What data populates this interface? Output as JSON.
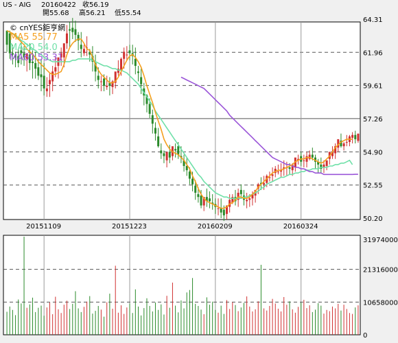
{
  "header": {
    "symbol": "US - AIG",
    "date": "20160422",
    "close_label": "收56.19",
    "open_label": "開55.68",
    "high_label": "高56.21",
    "low_label": "低55.54"
  },
  "legend": {
    "source": "© cnYES鉅亨網",
    "ma5": "MA5 55.77",
    "ma20": "MA20 54.0",
    "ma60": "MA60 53.31"
  },
  "colors": {
    "up": "#d03030",
    "down": "#2a8a2a",
    "ma5": "#f5a020",
    "ma20": "#6fe0a8",
    "ma60": "#9a55d8",
    "grid": "#555555",
    "background": "#f0f0f0"
  },
  "chart_data": [
    {
      "type": "candlestick",
      "title": "US - AIG",
      "y_ticks": [
        "64.31",
        "61.96",
        "59.61",
        "57.26",
        "54.90",
        "52.55",
        "50.20"
      ],
      "y_tick_values": [
        64.31,
        61.96,
        59.61,
        57.26,
        54.9,
        52.55,
        50.2
      ],
      "ylim": [
        50.2,
        64.31
      ],
      "x_ticks": [
        "20151109",
        "20151223",
        "20160209",
        "20160324"
      ],
      "x_tick_index": [
        13,
        43,
        73,
        103
      ],
      "num_bars": 124,
      "ohlc": [
        [
          63.5,
          63.4,
          62.5,
          62.0
        ],
        [
          63.3,
          63.5,
          61.9,
          61.5
        ],
        [
          61.9,
          62.5,
          61.8,
          61.1
        ],
        [
          61.8,
          62.0,
          61.6,
          60.9
        ],
        [
          61.7,
          62.2,
          61.2,
          60.9
        ],
        [
          62.1,
          62.8,
          61.9,
          61.1
        ],
        [
          61.9,
          62.4,
          61.6,
          61.0
        ],
        [
          61.5,
          61.9,
          61.9,
          60.6
        ],
        [
          61.8,
          62.6,
          61.2,
          60.7
        ],
        [
          61.3,
          62.1,
          61.2,
          60.1
        ],
        [
          61.2,
          62.0,
          60.8,
          60.1
        ],
        [
          60.9,
          61.5,
          60.3,
          60.0
        ],
        [
          60.4,
          61.5,
          60.2,
          59.2
        ],
        [
          60.3,
          61.2,
          59.4,
          58.9
        ],
        [
          59.2,
          60.2,
          59.4,
          58.8
        ],
        [
          59.7,
          60.5,
          60.0,
          58.8
        ],
        [
          59.9,
          61.0,
          60.6,
          59.2
        ],
        [
          60.6,
          61.6,
          60.9,
          60.2
        ],
        [
          61.0,
          61.6,
          61.6,
          60.1
        ],
        [
          61.6,
          62.3,
          61.9,
          61.0
        ],
        [
          61.6,
          62.6,
          62.6,
          60.9
        ],
        [
          62.6,
          63.9,
          63.3,
          62.2
        ],
        [
          63.6,
          64.1,
          63.5,
          62.3
        ],
        [
          63.7,
          64.4,
          63.4,
          62.9
        ],
        [
          63.6,
          64.2,
          63.2,
          62.7
        ],
        [
          63.2,
          63.4,
          62.8,
          62.1
        ],
        [
          62.5,
          63.4,
          62.2,
          61.6
        ],
        [
          61.9,
          62.5,
          62.2,
          61.7
        ],
        [
          62.3,
          63.1,
          62.3,
          61.7
        ],
        [
          62.0,
          62.2,
          61.8,
          61.3
        ],
        [
          61.7,
          62.4,
          61.3,
          60.6
        ],
        [
          61.2,
          61.8,
          60.6,
          59.9
        ],
        [
          60.3,
          60.9,
          60.0,
          59.4
        ],
        [
          59.9,
          60.3,
          59.9,
          59.2
        ],
        [
          60.1,
          60.4,
          59.6,
          59.2
        ],
        [
          59.5,
          60.3,
          59.6,
          59.3
        ],
        [
          59.8,
          60.2,
          59.6,
          58.9
        ],
        [
          59.5,
          60.0,
          59.9,
          59.0
        ],
        [
          59.8,
          60.5,
          60.6,
          59.4
        ],
        [
          60.5,
          61.4,
          60.8,
          60.3
        ],
        [
          60.7,
          61.6,
          61.5,
          60.3
        ],
        [
          61.5,
          62.3,
          62.0,
          60.8
        ],
        [
          61.8,
          62.4,
          61.8,
          61.4
        ],
        [
          62.1,
          62.5,
          61.9,
          61.4
        ],
        [
          61.9,
          62.5,
          61.7,
          61.1
        ],
        [
          61.5,
          62.3,
          61.0,
          60.4
        ],
        [
          60.6,
          61.0,
          60.5,
          59.9
        ],
        [
          60.2,
          60.8,
          59.7,
          59.0
        ],
        [
          59.4,
          59.8,
          58.9,
          58.2
        ],
        [
          58.9,
          59.0,
          58.3,
          57.7
        ],
        [
          58.3,
          58.7,
          57.6,
          57.3
        ],
        [
          57.5,
          57.9,
          56.9,
          56.2
        ],
        [
          56.6,
          57.0,
          56.2,
          55.7
        ],
        [
          56.0,
          56.6,
          55.3,
          55.2
        ],
        [
          55.0,
          55.5,
          54.8,
          54.4
        ],
        [
          54.8,
          55.0,
          54.6,
          54.1
        ],
        [
          54.3,
          54.9,
          54.9,
          53.8
        ],
        [
          54.9,
          55.4,
          54.5,
          54.1
        ],
        [
          54.6,
          55.1,
          55.3,
          54.3
        ],
        [
          55.1,
          55.5,
          55.0,
          54.5
        ],
        [
          55.3,
          55.6,
          54.7,
          54.4
        ],
        [
          54.6,
          55.3,
          54.5,
          54.1
        ],
        [
          54.3,
          54.7,
          53.9,
          53.5
        ],
        [
          53.9,
          54.5,
          53.6,
          53.2
        ],
        [
          53.5,
          53.8,
          53.0,
          52.6
        ],
        [
          53.0,
          53.5,
          52.6,
          52.1
        ],
        [
          52.5,
          52.9,
          52.0,
          51.5
        ],
        [
          51.9,
          52.4,
          51.7,
          51.3
        ],
        [
          51.8,
          52.2,
          51.1,
          50.9
        ],
        [
          51.1,
          51.6,
          51.7,
          50.7
        ],
        [
          51.7,
          52.3,
          51.4,
          51.0
        ],
        [
          51.6,
          52.1,
          51.4,
          50.9
        ],
        [
          51.3,
          51.9,
          51.2,
          50.8
        ],
        [
          51.2,
          51.6,
          51.0,
          50.5
        ],
        [
          50.9,
          51.6,
          50.9,
          50.4
        ],
        [
          50.9,
          51.6,
          50.6,
          50.2
        ],
        [
          50.8,
          51.1,
          50.4,
          50.0
        ],
        [
          50.5,
          51.1,
          51.1,
          50.1
        ],
        [
          51.0,
          51.9,
          51.5,
          50.6
        ],
        [
          51.3,
          51.9,
          51.7,
          51.2
        ],
        [
          51.7,
          52.2,
          51.4,
          51.1
        ],
        [
          51.5,
          52.3,
          52.0,
          51.0
        ],
        [
          52.2,
          52.6,
          51.9,
          51.6
        ],
        [
          51.8,
          52.2,
          51.5,
          51.1
        ],
        [
          51.4,
          52.0,
          51.5,
          50.9
        ],
        [
          51.5,
          51.9,
          51.6,
          51.0
        ],
        [
          51.6,
          52.1,
          51.9,
          51.1
        ],
        [
          51.8,
          52.2,
          52.2,
          51.3
        ],
        [
          52.3,
          52.7,
          52.6,
          51.9
        ],
        [
          52.7,
          53.1,
          52.6,
          52.2
        ],
        [
          52.6,
          53.2,
          52.7,
          52.2
        ],
        [
          52.7,
          53.3,
          53.2,
          52.4
        ],
        [
          53.1,
          53.5,
          53.1,
          52.8
        ],
        [
          53.2,
          53.8,
          53.3,
          52.8
        ],
        [
          53.4,
          53.9,
          53.7,
          53.1
        ],
        [
          53.5,
          54.0,
          53.5,
          53.3
        ],
        [
          53.5,
          54.1,
          53.6,
          53.1
        ],
        [
          53.7,
          54.3,
          53.8,
          53.2
        ],
        [
          53.8,
          54.2,
          53.8,
          53.2
        ],
        [
          53.8,
          54.1,
          53.7,
          53.3
        ],
        [
          53.6,
          54.1,
          54.0,
          53.2
        ],
        [
          53.8,
          54.4,
          54.5,
          53.5
        ],
        [
          54.3,
          54.7,
          54.4,
          54.0
        ],
        [
          54.6,
          54.9,
          54.2,
          53.9
        ],
        [
          54.3,
          54.7,
          54.3,
          53.8
        ],
        [
          54.2,
          54.9,
          54.6,
          53.8
        ],
        [
          54.4,
          55.0,
          54.7,
          54.3
        ],
        [
          54.7,
          55.2,
          54.5,
          54.3
        ],
        [
          54.5,
          54.7,
          54.2,
          53.7
        ],
        [
          54.2,
          54.4,
          54.0,
          53.4
        ],
        [
          54.0,
          54.5,
          53.7,
          53.4
        ],
        [
          53.8,
          54.3,
          54.0,
          53.4
        ],
        [
          53.9,
          54.2,
          54.3,
          53.6
        ],
        [
          54.4,
          54.9,
          54.9,
          54.0
        ],
        [
          54.6,
          55.3,
          54.9,
          54.4
        ],
        [
          54.8,
          55.5,
          55.3,
          54.4
        ],
        [
          55.2,
          55.6,
          55.8,
          54.9
        ],
        [
          55.7,
          56.2,
          55.3,
          55.2
        ],
        [
          55.3,
          55.6,
          55.5,
          55.0
        ],
        [
          55.6,
          56.1,
          55.6,
          55.3
        ],
        [
          55.6,
          56.1,
          56.0,
          55.3
        ],
        [
          55.9,
          56.3,
          56.1,
          55.5
        ],
        [
          56.1,
          56.4,
          55.8,
          55.5
        ],
        [
          55.68,
          56.21,
          56.19,
          55.54
        ]
      ],
      "ma5": [
        63.5,
        63.4,
        63.3,
        63.1,
        62.9,
        62.7,
        62.5,
        62.2,
        62.0,
        61.8,
        61.6,
        61.3,
        61.1,
        60.9,
        60.7,
        60.5,
        60.4,
        60.4,
        60.5,
        60.6,
        61.1,
        61.8,
        62.3,
        62.6,
        62.8,
        62.9,
        62.9,
        62.6,
        62.2,
        62.1,
        61.6,
        61.1,
        60.7,
        60.4,
        60.2,
        60.0,
        59.8,
        59.8,
        59.9,
        60.2,
        60.6,
        61.0,
        61.4,
        61.7,
        61.8,
        61.6,
        61.3,
        60.9,
        60.3,
        59.6,
        59.0,
        58.4,
        57.7,
        57.1,
        56.5,
        55.8,
        55.4,
        55.1,
        54.9,
        54.8,
        54.7,
        54.5,
        54.3,
        54.0,
        53.7,
        53.2,
        52.8,
        52.3,
        51.9,
        51.6,
        51.4,
        51.3,
        51.2,
        51.1,
        51.0,
        50.9,
        50.9,
        51.0,
        51.2,
        51.3,
        51.5,
        51.7,
        51.7,
        51.6,
        51.6,
        51.7,
        51.9,
        52.1,
        52.4,
        52.6,
        52.8,
        53.0,
        53.2,
        53.4,
        53.5,
        53.6,
        53.6,
        53.7,
        53.8,
        53.9,
        54.0,
        54.2,
        54.3,
        54.4,
        54.4,
        54.5,
        54.5,
        54.4,
        54.3,
        54.2,
        54.1,
        54.2,
        54.4,
        54.6,
        54.9,
        55.2,
        55.4,
        55.6,
        55.7,
        55.8,
        55.8,
        55.8
      ],
      "ma20": [
        63.5,
        63.4,
        63.3,
        63.2,
        63.0,
        62.8,
        62.7,
        62.5,
        62.4,
        62.2,
        62.1,
        61.9,
        61.8,
        61.6,
        61.5,
        61.4,
        61.3,
        61.3,
        61.3,
        61.3,
        61.3,
        61.3,
        61.3,
        61.4,
        61.4,
        61.5,
        61.5,
        61.5,
        61.5,
        61.5,
        61.4,
        61.3,
        61.2,
        61.1,
        61.0,
        61.0,
        60.9,
        60.8,
        60.8,
        60.7,
        60.7,
        60.6,
        60.5,
        60.3,
        60.1,
        59.9,
        59.7,
        59.4,
        59.1,
        58.8,
        58.5,
        58.2,
        57.8,
        57.5,
        57.2,
        56.9,
        56.6,
        56.3,
        56.0,
        55.7,
        55.4,
        55.1,
        54.8,
        54.5,
        54.2,
        53.9,
        53.6,
        53.3,
        53.1,
        52.8,
        52.6,
        52.4,
        52.2,
        52.0,
        51.9,
        51.8,
        51.7,
        51.7,
        51.6,
        51.6,
        51.6,
        51.6,
        51.6,
        51.7,
        51.7,
        51.8,
        51.9,
        52.0,
        52.1,
        52.3,
        52.4,
        52.6,
        52.7,
        52.8,
        52.9,
        53.0,
        53.1,
        53.1,
        53.2,
        53.3,
        53.3,
        53.4,
        53.4,
        53.5,
        53.5,
        53.6,
        53.6,
        53.7,
        53.7,
        53.7,
        53.8,
        53.8,
        53.8,
        53.9,
        53.9,
        54.0,
        54.0,
        54.1,
        54.1,
        54.2,
        54.3,
        54.0
      ],
      "ma60_start_index": 61,
      "ma60": [
        60.2,
        60.1,
        60.0,
        59.9,
        59.8,
        59.7,
        59.6,
        59.5,
        59.4,
        59.2,
        59.0,
        58.8,
        58.6,
        58.4,
        58.2,
        58.0,
        57.8,
        57.5,
        57.3,
        57.1,
        56.9,
        56.7,
        56.5,
        56.3,
        56.1,
        55.9,
        55.7,
        55.5,
        55.3,
        55.1,
        54.9,
        54.7,
        54.5,
        54.4,
        54.3,
        54.2,
        54.1,
        54.0,
        54.0,
        53.9,
        53.8,
        53.8,
        53.7,
        53.7,
        53.6,
        53.5,
        53.5,
        53.4,
        53.4,
        53.4,
        53.3,
        53.3,
        53.3,
        53.3,
        53.3,
        53.3,
        53.3,
        53.3,
        53.3,
        53.3,
        53.3,
        53.31,
        53.31
      ]
    },
    {
      "type": "bar",
      "title": "Volume",
      "y_ticks": [
        "31974000",
        "21316000",
        "10658000",
        "0"
      ],
      "y_tick_values": [
        31974000,
        21316000,
        10658000,
        0
      ],
      "ylim": [
        0,
        31974000
      ],
      "values": [
        7.5,
        9.2,
        8.1,
        6.4,
        11.5,
        10.2,
        31.97,
        8.8,
        9.9,
        12.1,
        7.4,
        8.8,
        9.5,
        6.2,
        8.9,
        10.5,
        6.7,
        12.4,
        8.3,
        7.1,
        9.8,
        11.1,
        8.4,
        10.1,
        14.2,
        8.6,
        7.4,
        9.1,
        10.8,
        12.6,
        6.9,
        7.8,
        9.4,
        8.2,
        5.9,
        10.6,
        13.4,
        8.5,
        22.5,
        7.2,
        9.6,
        6.8,
        8.9,
        10.2,
        7.1,
        14.8,
        9.2,
        6.3,
        8.7,
        11.9,
        9.4,
        7.6,
        10.5,
        8.1,
        9.9,
        6.6,
        12.7,
        8.8,
        17.0,
        9.5,
        7.3,
        11.2,
        8.6,
        13.8,
        14.6,
        18.5,
        10.1,
        9.4,
        8.2,
        6.7,
        12.2,
        9.8,
        10.8,
        8.1,
        7.2,
        9.5,
        6.8,
        11.3,
        8.4,
        10.6,
        9.7,
        7.7,
        8.9,
        10.4,
        12.5,
        9.2,
        7.6,
        8.3,
        10.9,
        22.8,
        8.6,
        7.9,
        9.4,
        11.7,
        10.2,
        8.5,
        7.6,
        12.3,
        9.8,
        10.9,
        8.3,
        7.2,
        9.1,
        10.5,
        11.4,
        8.7,
        9.6,
        7.4,
        8.2,
        10.3,
        9.5,
        6.9,
        8.1,
        7.7,
        9.2,
        8.6,
        10.1,
        7.9,
        9.8,
        8.4,
        7.1,
        6.8,
        8.9,
        9.6
      ],
      "values_unit": "millions"
    }
  ]
}
